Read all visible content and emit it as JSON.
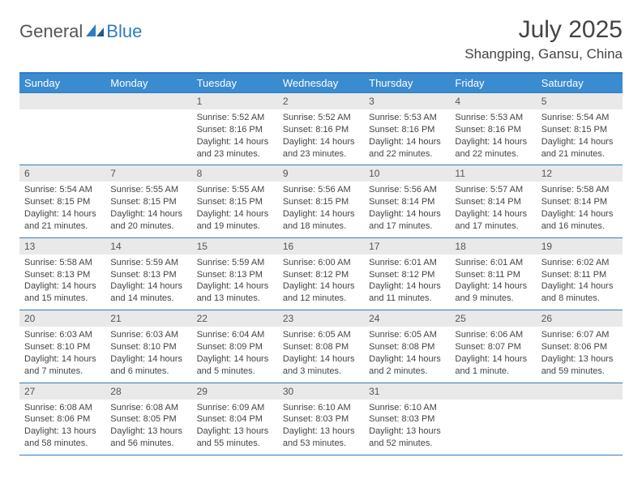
{
  "brand": {
    "part1": "General",
    "part2": "Blue"
  },
  "title": "July 2025",
  "location": "Shangping, Gansu, China",
  "colors": {
    "accent": "#3b8bd0",
    "border": "#2f7cc0",
    "dayBg": "#e9e9e9"
  },
  "dayHeaders": [
    "Sunday",
    "Monday",
    "Tuesday",
    "Wednesday",
    "Thursday",
    "Friday",
    "Saturday"
  ],
  "weeks": [
    [
      null,
      null,
      {
        "n": "1",
        "sr": "5:52 AM",
        "ss": "8:16 PM",
        "dl": "14 hours and 23 minutes."
      },
      {
        "n": "2",
        "sr": "5:52 AM",
        "ss": "8:16 PM",
        "dl": "14 hours and 23 minutes."
      },
      {
        "n": "3",
        "sr": "5:53 AM",
        "ss": "8:16 PM",
        "dl": "14 hours and 22 minutes."
      },
      {
        "n": "4",
        "sr": "5:53 AM",
        "ss": "8:16 PM",
        "dl": "14 hours and 22 minutes."
      },
      {
        "n": "5",
        "sr": "5:54 AM",
        "ss": "8:15 PM",
        "dl": "14 hours and 21 minutes."
      }
    ],
    [
      {
        "n": "6",
        "sr": "5:54 AM",
        "ss": "8:15 PM",
        "dl": "14 hours and 21 minutes."
      },
      {
        "n": "7",
        "sr": "5:55 AM",
        "ss": "8:15 PM",
        "dl": "14 hours and 20 minutes."
      },
      {
        "n": "8",
        "sr": "5:55 AM",
        "ss": "8:15 PM",
        "dl": "14 hours and 19 minutes."
      },
      {
        "n": "9",
        "sr": "5:56 AM",
        "ss": "8:15 PM",
        "dl": "14 hours and 18 minutes."
      },
      {
        "n": "10",
        "sr": "5:56 AM",
        "ss": "8:14 PM",
        "dl": "14 hours and 17 minutes."
      },
      {
        "n": "11",
        "sr": "5:57 AM",
        "ss": "8:14 PM",
        "dl": "14 hours and 17 minutes."
      },
      {
        "n": "12",
        "sr": "5:58 AM",
        "ss": "8:14 PM",
        "dl": "14 hours and 16 minutes."
      }
    ],
    [
      {
        "n": "13",
        "sr": "5:58 AM",
        "ss": "8:13 PM",
        "dl": "14 hours and 15 minutes."
      },
      {
        "n": "14",
        "sr": "5:59 AM",
        "ss": "8:13 PM",
        "dl": "14 hours and 14 minutes."
      },
      {
        "n": "15",
        "sr": "5:59 AM",
        "ss": "8:13 PM",
        "dl": "14 hours and 13 minutes."
      },
      {
        "n": "16",
        "sr": "6:00 AM",
        "ss": "8:12 PM",
        "dl": "14 hours and 12 minutes."
      },
      {
        "n": "17",
        "sr": "6:01 AM",
        "ss": "8:12 PM",
        "dl": "14 hours and 11 minutes."
      },
      {
        "n": "18",
        "sr": "6:01 AM",
        "ss": "8:11 PM",
        "dl": "14 hours and 9 minutes."
      },
      {
        "n": "19",
        "sr": "6:02 AM",
        "ss": "8:11 PM",
        "dl": "14 hours and 8 minutes."
      }
    ],
    [
      {
        "n": "20",
        "sr": "6:03 AM",
        "ss": "8:10 PM",
        "dl": "14 hours and 7 minutes."
      },
      {
        "n": "21",
        "sr": "6:03 AM",
        "ss": "8:10 PM",
        "dl": "14 hours and 6 minutes."
      },
      {
        "n": "22",
        "sr": "6:04 AM",
        "ss": "8:09 PM",
        "dl": "14 hours and 5 minutes."
      },
      {
        "n": "23",
        "sr": "6:05 AM",
        "ss": "8:08 PM",
        "dl": "14 hours and 3 minutes."
      },
      {
        "n": "24",
        "sr": "6:05 AM",
        "ss": "8:08 PM",
        "dl": "14 hours and 2 minutes."
      },
      {
        "n": "25",
        "sr": "6:06 AM",
        "ss": "8:07 PM",
        "dl": "14 hours and 1 minute."
      },
      {
        "n": "26",
        "sr": "6:07 AM",
        "ss": "8:06 PM",
        "dl": "13 hours and 59 minutes."
      }
    ],
    [
      {
        "n": "27",
        "sr": "6:08 AM",
        "ss": "8:06 PM",
        "dl": "13 hours and 58 minutes."
      },
      {
        "n": "28",
        "sr": "6:08 AM",
        "ss": "8:05 PM",
        "dl": "13 hours and 56 minutes."
      },
      {
        "n": "29",
        "sr": "6:09 AM",
        "ss": "8:04 PM",
        "dl": "13 hours and 55 minutes."
      },
      {
        "n": "30",
        "sr": "6:10 AM",
        "ss": "8:03 PM",
        "dl": "13 hours and 53 minutes."
      },
      {
        "n": "31",
        "sr": "6:10 AM",
        "ss": "8:03 PM",
        "dl": "13 hours and 52 minutes."
      },
      null,
      null
    ]
  ],
  "labels": {
    "sunrise": "Sunrise:",
    "sunset": "Sunset:",
    "daylight": "Daylight:"
  }
}
